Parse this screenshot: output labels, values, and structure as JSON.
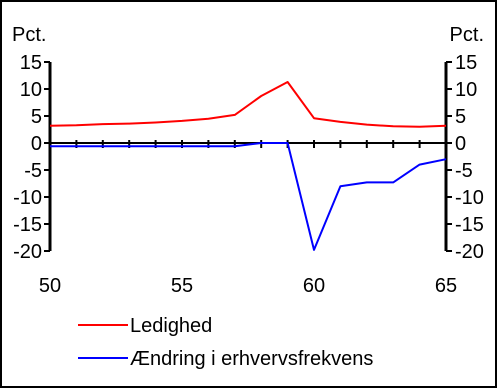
{
  "chart_data": {
    "type": "line",
    "unit_left": "Pct.",
    "unit_right": "Pct.",
    "x": [
      50,
      51,
      52,
      53,
      54,
      55,
      56,
      57,
      58,
      59,
      60,
      61,
      62,
      63,
      64,
      65
    ],
    "xlim": [
      50,
      65
    ],
    "ylim": [
      -20,
      15
    ],
    "x_ticks": [
      50,
      55,
      60,
      65
    ],
    "y_ticks": [
      15,
      10,
      5,
      0,
      -5,
      -10,
      -15,
      -20
    ],
    "series": [
      {
        "name": "Ledighed",
        "color": "#ff0000",
        "values": [
          3.2,
          3.3,
          3.5,
          3.6,
          3.8,
          4.1,
          4.5,
          5.2,
          8.7,
          11.3,
          4.6,
          3.9,
          3.4,
          3.1,
          3.0,
          3.2
        ]
      },
      {
        "name": "Ændring i erhvervsfrekvens",
        "color": "#0000ff",
        "values": [
          -0.6,
          -0.6,
          -0.6,
          -0.6,
          -0.6,
          -0.6,
          -0.6,
          -0.6,
          0,
          0,
          -19.8,
          -8.0,
          -7.3,
          -7.3,
          -4.0,
          -3.0
        ]
      }
    ],
    "grid": false,
    "legend_position": "bottom-left"
  }
}
